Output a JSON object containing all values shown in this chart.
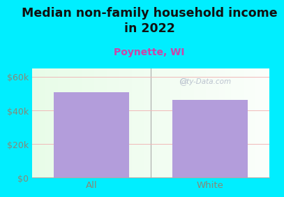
{
  "title": "Median non-family household income\nin 2022",
  "subtitle": "Poynette, WI",
  "categories": [
    "All",
    "White"
  ],
  "values": [
    51000,
    46500
  ],
  "bar_color": "#b39ddb",
  "title_fontsize": 12.5,
  "subtitle_fontsize": 10,
  "subtitle_color": "#cc44aa",
  "title_color": "#111111",
  "background_outer": "#00eeff",
  "yticks": [
    0,
    20000,
    40000,
    60000
  ],
  "ytick_labels": [
    "$0",
    "$20k",
    "$40k",
    "$60k"
  ],
  "ylim": [
    0,
    65000
  ],
  "tick_color": "#888877",
  "watermark": "City-Data.com"
}
